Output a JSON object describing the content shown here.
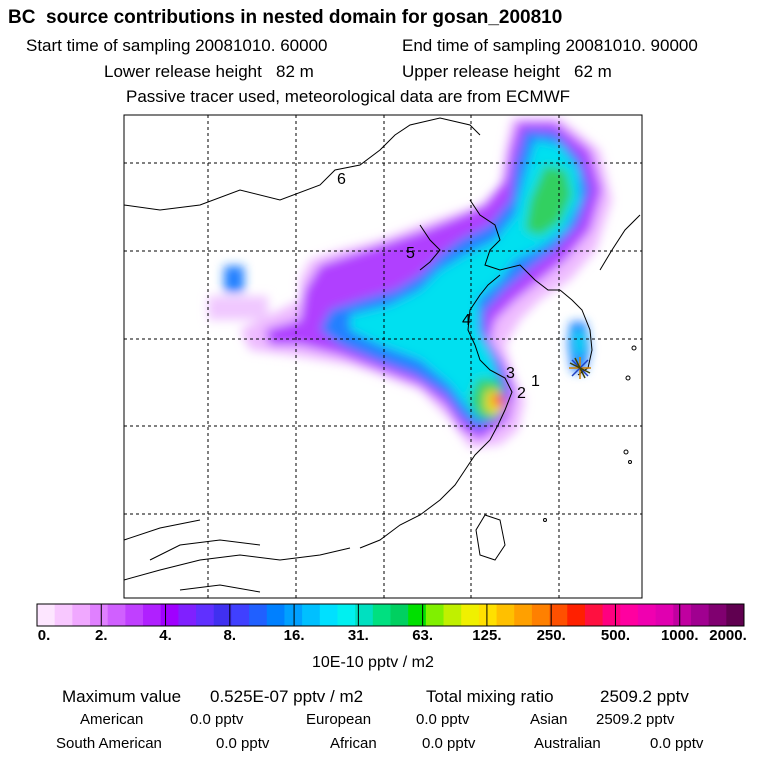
{
  "header": {
    "title": "BC  source contributions in nested domain for gosan_200810",
    "start_time": "Start time of sampling 20081010. 60000",
    "end_time": "End time of sampling 20081010. 90000",
    "lower_release": "Lower release height   82 m",
    "upper_release": "Upper release height   62 m",
    "tracer_note": "Passive tracer used, meteorological data are from ECMWF"
  },
  "map": {
    "site_markers": [
      "1",
      "2",
      "3",
      "4",
      "5",
      "6"
    ],
    "receptor_icon": "star-icon",
    "colors": {
      "plume_purple": "#b040ff",
      "plume_blue": "#2080ff",
      "plume_cyan": "#00e0f0",
      "plume_green": "#30d060",
      "plume_yellow": "#f0e020",
      "plume_red": "#ff2030"
    }
  },
  "colorbar": {
    "ticks": [
      "0.",
      "2.",
      "4.",
      "8.",
      "16.",
      "31.",
      "63.",
      "125.",
      "250.",
      "500.",
      "1000.",
      "2000."
    ],
    "colors": [
      "#fde6ff",
      "#f8c8ff",
      "#f0a8ff",
      "#e080ff",
      "#d060ff",
      "#c040ff",
      "#b020ff",
      "#a000ff",
      "#8020ff",
      "#6030ff",
      "#4030f0",
      "#4040ff",
      "#2060ff",
      "#0080ff",
      "#00a0ff",
      "#00c0ff",
      "#00e0ff",
      "#00f0f0",
      "#00e0c0",
      "#00e080",
      "#00d060",
      "#00e000",
      "#80f000",
      "#c0f000",
      "#f0f000",
      "#ffe000",
      "#ffc000",
      "#ffa000",
      "#ff8000",
      "#ff5000",
      "#ff2000",
      "#ff1040",
      "#ff0080",
      "#ff00a0",
      "#f000b0",
      "#e000b0",
      "#c000a0",
      "#a00090",
      "#800070",
      "#600050"
    ],
    "unit": "10E-10 pptv / m2"
  },
  "summary": {
    "max_label": "Maximum value",
    "max_value": "0.525E-07 pptv / m2",
    "total_label": "Total mixing ratio",
    "total_value": "2509.2 pptv",
    "regions": [
      {
        "name": "American",
        "value": "0.0 pptv"
      },
      {
        "name": "European",
        "value": "0.0 pptv"
      },
      {
        "name": "Asian",
        "value": "2509.2 pptv"
      },
      {
        "name": "South American",
        "value": "0.0 pptv"
      },
      {
        "name": "African",
        "value": "0.0 pptv"
      },
      {
        "name": "Australian",
        "value": "0.0 pptv"
      }
    ]
  }
}
